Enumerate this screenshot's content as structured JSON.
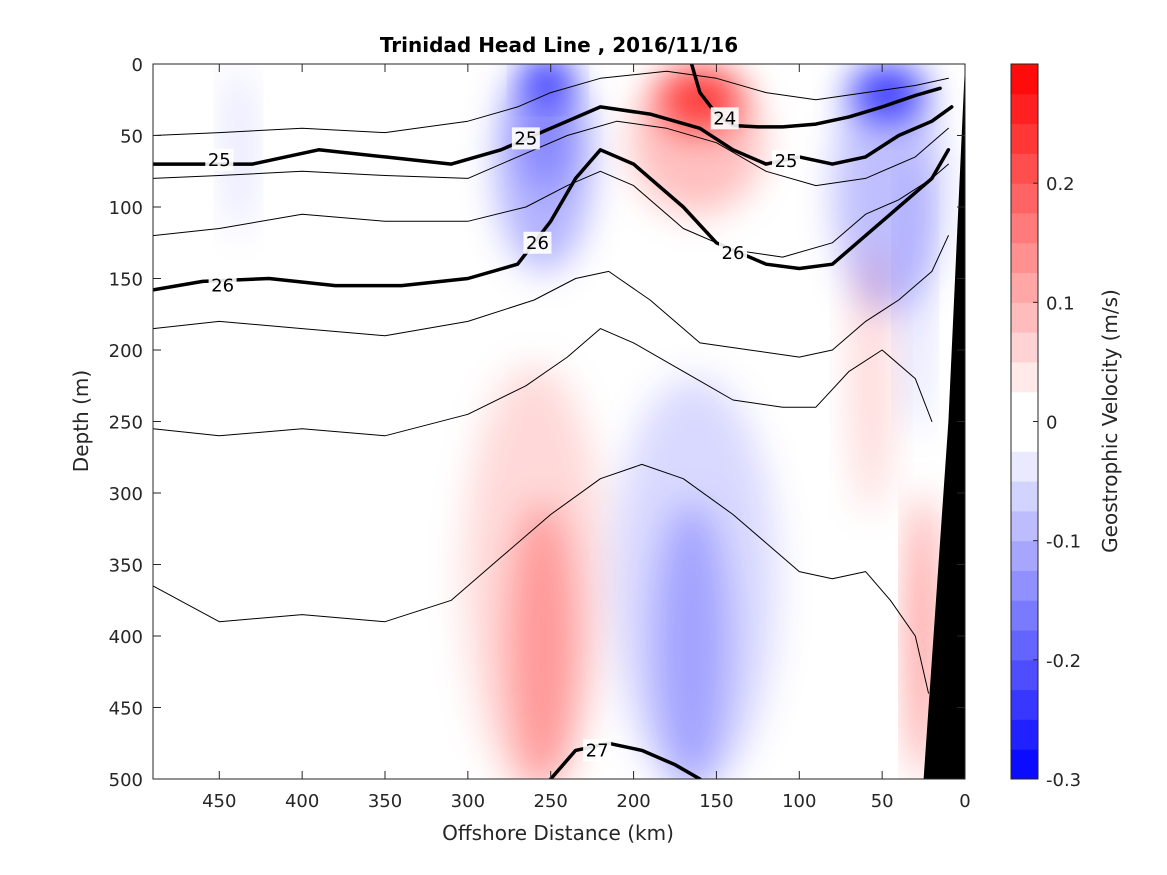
{
  "chart_data": {
    "type": "contour",
    "title": "Trinidad Head Line , 2016/11/16",
    "xlabel": "Offshore Distance (km)",
    "ylabel": "Depth (m)",
    "colorbar_label": "Geostrophic Velocity (m/s)",
    "xlim": [
      490,
      0
    ],
    "ylim": [
      500,
      0
    ],
    "x_ticks": [
      "450",
      "400",
      "350",
      "300",
      "250",
      "200",
      "150",
      "100",
      "50",
      "0"
    ],
    "x_tick_values": [
      450,
      400,
      350,
      300,
      250,
      200,
      150,
      100,
      50,
      0
    ],
    "y_ticks": [
      "0",
      "50",
      "100",
      "150",
      "200",
      "250",
      "300",
      "350",
      "400",
      "450",
      "500"
    ],
    "y_tick_values": [
      0,
      50,
      100,
      150,
      200,
      250,
      300,
      350,
      400,
      450,
      500
    ],
    "colorbar_ticks": [
      "0.2",
      "0.1",
      "0",
      "-0.1",
      "-0.2",
      "-0.3"
    ],
    "colorbar_tick_values": [
      0.2,
      0.1,
      0,
      -0.1,
      -0.2,
      -0.3
    ],
    "colorbar_range": [
      -0.3,
      0.3
    ],
    "colors": {
      "positive": "#ff0000",
      "negative": "#0000ff",
      "bathymetry": "#000000"
    },
    "velocity_patches": [
      {
        "sign": "neg",
        "level": 0.3,
        "x": [
          290,
          240,
          232
        ],
        "y": [
          0,
          60,
          150
        ]
      },
      {
        "sign": "neg",
        "level": 0.25,
        "x": [
          272,
          248,
          238
        ],
        "y": [
          0,
          40,
          90
        ]
      },
      {
        "sign": "neg",
        "level": 0.8,
        "x": [
          265,
          240,
          250
        ],
        "y": [
          0,
          25,
          10
        ]
      },
      {
        "sign": "pos",
        "level": 0.25,
        "x": [
          200,
          165,
          120
        ],
        "y": [
          0,
          65,
          100
        ]
      },
      {
        "sign": "pos",
        "level": 0.7,
        "x": [
          185,
          160,
          135
        ],
        "y": [
          0,
          30,
          45
        ]
      },
      {
        "sign": "neg",
        "level": 0.25,
        "x": [
          80,
          45,
          15
        ],
        "y": [
          0,
          100,
          170
        ]
      },
      {
        "sign": "neg",
        "level": 0.7,
        "x": [
          70,
          45,
          25
        ],
        "y": [
          0,
          20,
          40
        ]
      },
      {
        "sign": "neg",
        "level": 0.12,
        "x": [
          445,
          430,
          440
        ],
        "y": [
          0,
          60,
          120
        ]
      },
      {
        "sign": "pos",
        "level": 0.15,
        "x": [
          305,
          255,
          220
        ],
        "y": [
          200,
          380,
          500
        ]
      },
      {
        "sign": "pos",
        "level": 0.3,
        "x": [
          275,
          255,
          235
        ],
        "y": [
          300,
          420,
          500
        ]
      },
      {
        "sign": "neg",
        "level": 0.15,
        "x": [
          210,
          170,
          110
        ],
        "y": [
          210,
          380,
          500
        ]
      },
      {
        "sign": "neg",
        "level": 0.25,
        "x": [
          190,
          160,
          145
        ],
        "y": [
          300,
          420,
          500
        ]
      },
      {
        "sign": "pos",
        "level": 0.15,
        "x": [
          70,
          55,
          45
        ],
        "y": [
          110,
          250,
          300
        ]
      },
      {
        "sign": "pos",
        "level": 0.5,
        "x": [
          30,
          25,
          22
        ],
        "y": [
          300,
          400,
          500
        ]
      },
      {
        "sign": "neg",
        "level": 0.15,
        "x": [
          35,
          30,
          25
        ],
        "y": [
          60,
          160,
          260
        ]
      }
    ],
    "isopycnals": [
      {
        "level": "24",
        "bold": true,
        "x": [
          165,
          160,
          150,
          140,
          125,
          110,
          90,
          70,
          50,
          30,
          15
        ],
        "y": [
          0,
          20,
          35,
          43,
          44,
          44,
          42,
          37,
          30,
          22,
          17
        ]
      },
      {
        "level": "25",
        "bold": true,
        "x": [
          490,
          460,
          430,
          390,
          350,
          310,
          280,
          250,
          220,
          190,
          160,
          140,
          120,
          100,
          80,
          60,
          40,
          20,
          8
        ],
        "y": [
          70,
          70,
          70,
          60,
          65,
          70,
          60,
          45,
          30,
          35,
          45,
          60,
          70,
          65,
          70,
          65,
          50,
          40,
          30
        ]
      },
      {
        "level": "26",
        "bold": true,
        "x": [
          490,
          460,
          420,
          380,
          340,
          300,
          270,
          250,
          235,
          220,
          200,
          170,
          150,
          120,
          100,
          80,
          60,
          40,
          20,
          10
        ],
        "y": [
          158,
          152,
          150,
          155,
          155,
          150,
          140,
          110,
          80,
          60,
          70,
          100,
          125,
          140,
          143,
          140,
          120,
          100,
          80,
          60
        ]
      },
      {
        "level": "27",
        "bold": true,
        "x": [
          250,
          235,
          215,
          195,
          175,
          160
        ],
        "y": [
          500,
          480,
          475,
          480,
          490,
          500
        ]
      },
      {
        "level": "",
        "bold": false,
        "x": [
          490,
          450,
          400,
          350,
          300,
          270,
          250,
          220,
          180,
          150,
          120,
          90,
          60,
          30,
          10
        ],
        "y": [
          50,
          48,
          45,
          48,
          40,
          30,
          20,
          10,
          5,
          10,
          20,
          25,
          20,
          15,
          10
        ]
      },
      {
        "level": "",
        "bold": false,
        "x": [
          490,
          450,
          400,
          350,
          300,
          270,
          240,
          210,
          180,
          150,
          120,
          90,
          60,
          30,
          10
        ],
        "y": [
          80,
          78,
          75,
          78,
          80,
          65,
          50,
          40,
          45,
          55,
          75,
          85,
          80,
          65,
          45
        ]
      },
      {
        "level": "",
        "bold": false,
        "x": [
          490,
          450,
          400,
          350,
          300,
          265,
          240,
          220,
          200,
          170,
          140,
          110,
          80,
          60,
          40,
          20,
          10
        ],
        "y": [
          120,
          115,
          105,
          110,
          110,
          100,
          85,
          75,
          85,
          115,
          130,
          135,
          125,
          105,
          95,
          80,
          70
        ]
      },
      {
        "level": "",
        "bold": false,
        "x": [
          490,
          450,
          400,
          350,
          300,
          260,
          235,
          215,
          190,
          160,
          130,
          100,
          80,
          60,
          40,
          20,
          10
        ],
        "y": [
          185,
          180,
          185,
          190,
          180,
          165,
          150,
          145,
          165,
          195,
          200,
          205,
          200,
          180,
          165,
          145,
          120
        ]
      },
      {
        "level": "",
        "bold": false,
        "x": [
          490,
          450,
          400,
          350,
          300,
          265,
          240,
          220,
          200,
          170,
          140,
          110,
          90,
          70,
          50,
          30,
          20
        ],
        "y": [
          255,
          260,
          255,
          260,
          245,
          225,
          205,
          185,
          195,
          215,
          235,
          240,
          240,
          215,
          200,
          220,
          250
        ]
      },
      {
        "level": "",
        "bold": false,
        "x": [
          490,
          450,
          400,
          350,
          310,
          280,
          250,
          220,
          195,
          170,
          140,
          120,
          100,
          80,
          60,
          45,
          30,
          22
        ],
        "y": [
          365,
          390,
          385,
          390,
          375,
          345,
          315,
          290,
          280,
          290,
          315,
          335,
          355,
          360,
          355,
          375,
          400,
          440
        ]
      }
    ],
    "contour_labels": [
      {
        "text": "24",
        "x": 145,
        "y": 38
      },
      {
        "text": "25",
        "x": 450,
        "y": 67
      },
      {
        "text": "25",
        "x": 265,
        "y": 52
      },
      {
        "text": "25",
        "x": 108,
        "y": 68
      },
      {
        "text": "26",
        "x": 448,
        "y": 155
      },
      {
        "text": "26",
        "x": 258,
        "y": 125
      },
      {
        "text": "26",
        "x": 140,
        "y": 132
      },
      {
        "text": "27",
        "x": 222,
        "y": 480
      }
    ],
    "bathymetry": {
      "x": [
        0,
        0,
        25,
        10,
        0
      ],
      "y": [
        0,
        500,
        500,
        250,
        0
      ]
    },
    "grid": false,
    "legend": "colorbar-right"
  }
}
